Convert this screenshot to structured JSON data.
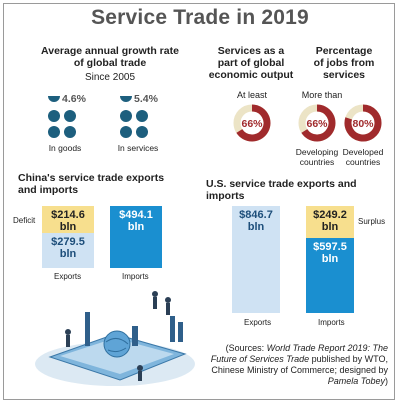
{
  "title": "Service Trade in 2019",
  "growth": {
    "heading_line1": "Average annual growth rate",
    "heading_line2": "of global trade",
    "since": "Since 2005",
    "goods": {
      "value": "4.6%",
      "label": "In goods"
    },
    "services": {
      "value": "5.4%",
      "label": "In services"
    }
  },
  "output": {
    "heading_line1": "Services as a",
    "heading_line2": "part of global",
    "heading_line3": "economic output",
    "qualifier": "At least",
    "value": "66%",
    "fraction": 0.66,
    "fill_color": "#a02a2c",
    "track_color": "#ece4c6"
  },
  "jobs": {
    "heading_line1": "Percentage",
    "heading_line2": "of jobs from",
    "heading_line3": "services",
    "qualifier": "More than",
    "developing": {
      "value": "66%",
      "fraction": 0.66,
      "label_line1": "Developing",
      "label_line2": "countries"
    },
    "developed": {
      "value": "80%",
      "fraction": 0.8,
      "label_line1": "Developed",
      "label_line2": "countries"
    }
  },
  "china": {
    "heading_line1": "China's service trade exports",
    "heading_line2": "and imports",
    "deficit_label": "Deficit",
    "exports": {
      "value": "$279.5",
      "unit": "bln",
      "label": "Exports"
    },
    "deficit": {
      "value": "$214.6",
      "unit": "bln"
    },
    "imports": {
      "value": "$494.1",
      "unit": "bln",
      "label": "Imports"
    }
  },
  "us": {
    "heading": "U.S. service trade exports and imports",
    "surplus_label": "Surplus",
    "exports": {
      "value": "$846.7",
      "unit": "bln",
      "label": "Exports"
    },
    "surplus": {
      "value": "$249.2",
      "unit": "bln"
    },
    "imports": {
      "value": "$597.5",
      "unit": "bln",
      "label": "Imports"
    }
  },
  "colors": {
    "blue": "#1a8fd0",
    "light_blue": "#cfe2f3",
    "yellow": "#f7df8e",
    "navy": "#1d5f7e"
  },
  "source": {
    "line_open": "(Sources: ",
    "italic": "World Trade Report 2019: The Future of Services Trade",
    "rest": " published by WTO, Chinese Ministry of Commerce; designed by ",
    "designer": "Pamela Tobey",
    "close": ")"
  },
  "chart_data": [
    {
      "type": "bar",
      "title": "China's service trade exports and imports",
      "categories": [
        "Exports",
        "Imports"
      ],
      "series": [
        {
          "name": "",
          "values": [
            279.5,
            494.1
          ]
        },
        {
          "name": "Deficit",
          "values": [
            214.6,
            0
          ]
        }
      ],
      "unit": "bln"
    },
    {
      "type": "bar",
      "title": "U.S. service trade exports and imports",
      "categories": [
        "Exports",
        "Imports"
      ],
      "series": [
        {
          "name": "",
          "values": [
            846.7,
            597.5
          ]
        },
        {
          "name": "Surplus",
          "values": [
            0,
            249.2
          ]
        }
      ],
      "unit": "bln"
    }
  ]
}
